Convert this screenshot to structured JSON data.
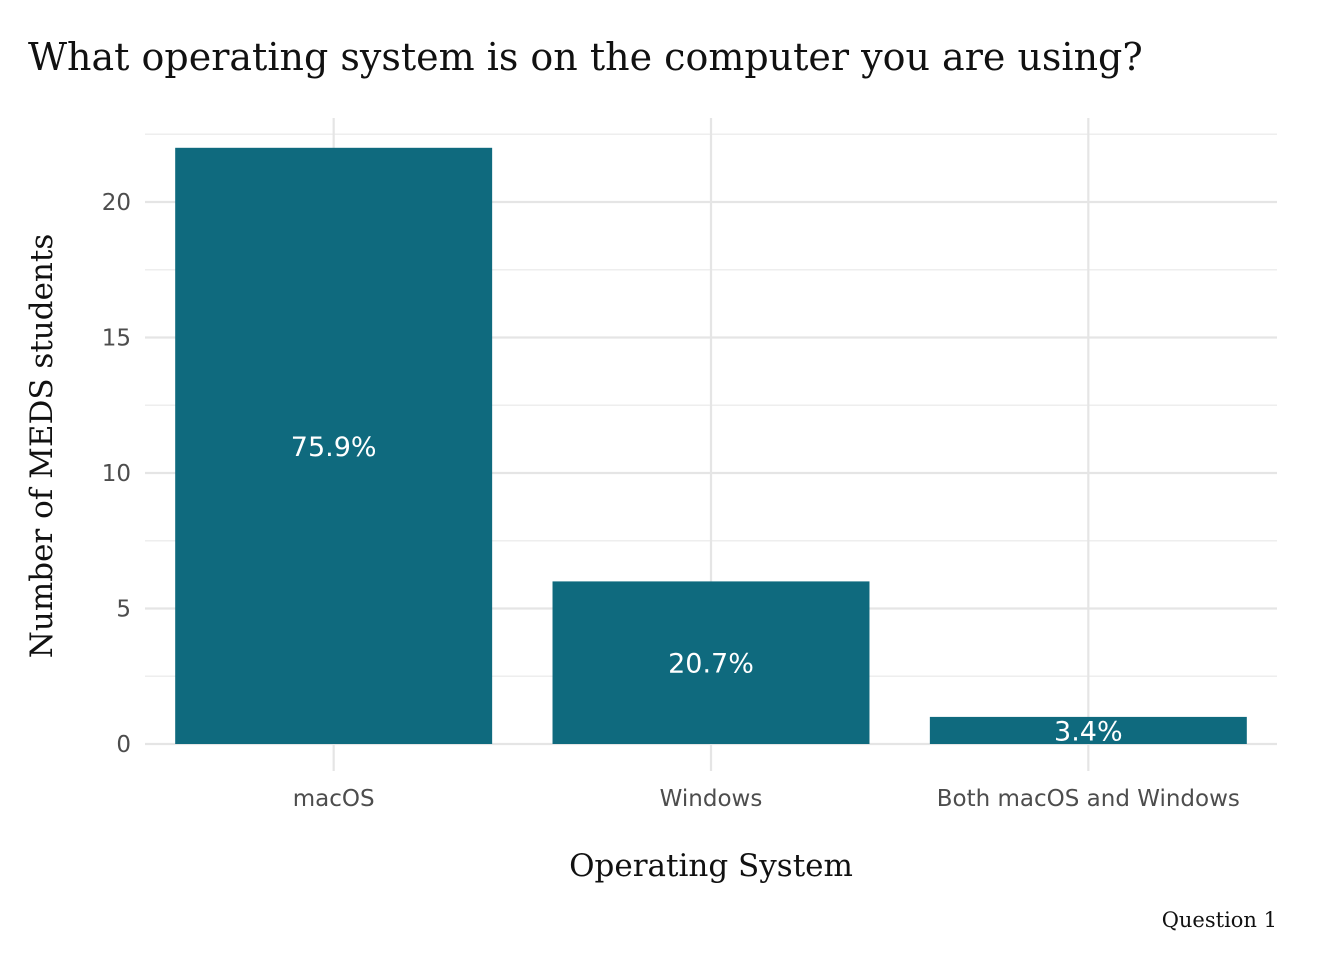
{
  "chart_data": {
    "type": "bar",
    "title": "What operating system is on the computer you are using?",
    "xlabel": "Operating System",
    "ylabel": "Number of MEDS students",
    "caption": "Question 1",
    "categories": [
      "macOS",
      "Windows",
      "Both macOS and Windows"
    ],
    "values": [
      22,
      6,
      1
    ],
    "bar_labels": [
      "75.9%",
      "20.7%",
      "3.4%"
    ],
    "y_ticks": [
      "0",
      "5",
      "10",
      "15",
      "20"
    ],
    "ylim": [
      0,
      23
    ],
    "grid": true,
    "legend": "none",
    "bar_color": "#0f6a7e"
  }
}
